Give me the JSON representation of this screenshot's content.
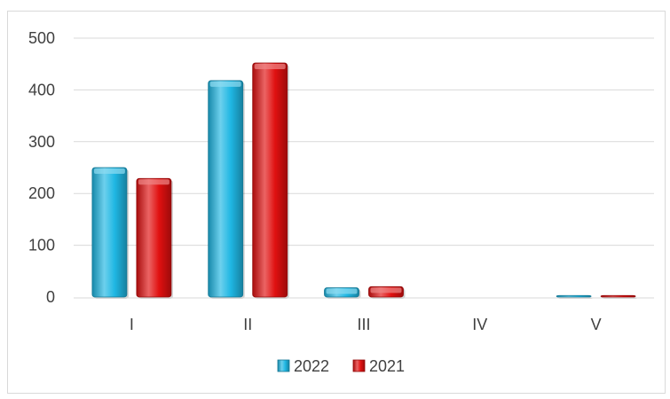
{
  "chart_data": {
    "type": "bar",
    "categories": [
      "I",
      "II",
      "III",
      "IV",
      "V"
    ],
    "series": [
      {
        "name": "2022",
        "values": [
          250,
          418,
          18,
          0,
          3
        ],
        "color": "#1fb7e3"
      },
      {
        "name": "2021",
        "values": [
          229,
          452,
          20,
          0,
          3
        ],
        "color": "#e01010"
      }
    ],
    "ylim": [
      0,
      500
    ],
    "yticks": [
      0,
      100,
      200,
      300,
      400,
      500
    ],
    "grid": true,
    "legend": "bottom-center"
  }
}
